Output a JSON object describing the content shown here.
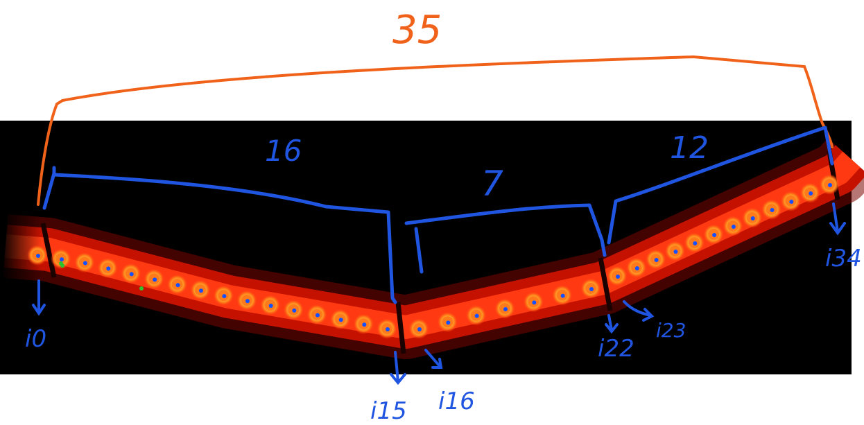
{
  "colors": {
    "background": "#ffffff",
    "photo_bg": "#000000",
    "strip_outer": "#b00a00",
    "strip_inner": "#ff3a10",
    "led_outer": "#ff7a1a",
    "led_core": "#ffe24a",
    "marker": "#1450ff",
    "marker_green": "#2ec22e",
    "annotation_blue": "#1f55e0",
    "annotation_orange": "#f0621a"
  },
  "total": {
    "label": "35"
  },
  "segments": [
    {
      "label": "16",
      "count": 16
    },
    {
      "label": "7",
      "count": 7
    },
    {
      "label": "12",
      "count": 12
    }
  ],
  "index_labels": [
    "i0",
    "i15",
    "i16",
    "i22",
    "i23",
    "i34"
  ],
  "icons": {
    "arrow": "arrow-down-icon"
  }
}
